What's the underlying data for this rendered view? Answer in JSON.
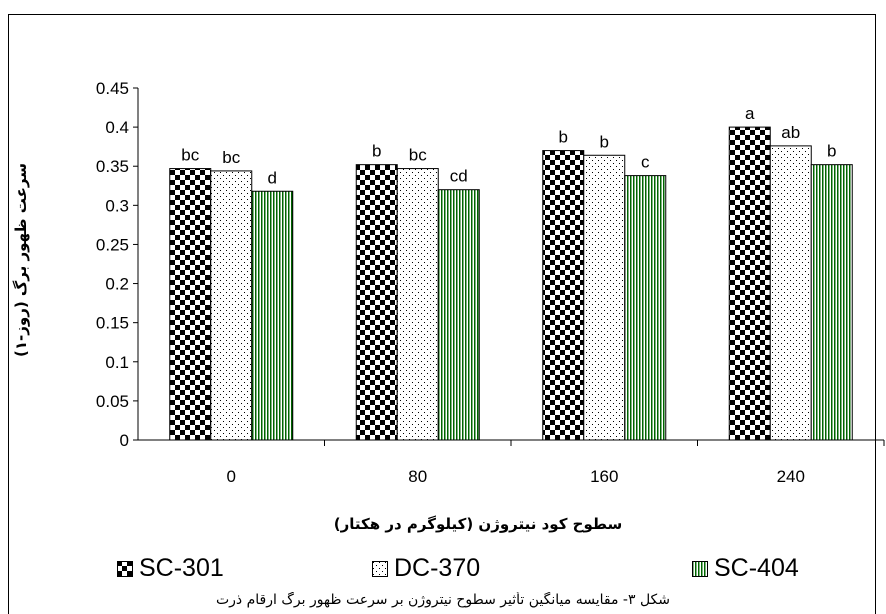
{
  "chart_data": {
    "type": "bar",
    "categories": [
      "0",
      "80",
      "160",
      "240"
    ],
    "series": [
      {
        "name": "SC-301",
        "values": [
          0.347,
          0.352,
          0.37,
          0.4
        ],
        "letters": [
          "bc",
          "b",
          "b",
          "a"
        ],
        "pattern": "checker"
      },
      {
        "name": "DC-370",
        "values": [
          0.344,
          0.347,
          0.364,
          0.376
        ],
        "letters": [
          "bc",
          "bc",
          "b",
          "ab"
        ],
        "pattern": "dots"
      },
      {
        "name": "SC-404",
        "values": [
          0.318,
          0.32,
          0.338,
          0.352
        ],
        "letters": [
          "d",
          "cd",
          "c",
          "b"
        ],
        "pattern": "vlines"
      }
    ],
    "ylim": [
      0,
      0.45
    ],
    "yticks": [
      "0",
      "0.05",
      "0.1",
      "0.15",
      "0.2",
      "0.25",
      "0.3",
      "0.35",
      "0.4",
      "0.45"
    ],
    "xlabel": "سطوح کود نیتروژن (کیلوگرم در هکتار)",
    "ylabel": "سرعت ظهور برگ (روز-۱)",
    "legend_position": "bottom",
    "grid": false,
    "colors": {
      "pattern": "#000000",
      "background": "#ffffff",
      "vlines": "#006600"
    }
  },
  "caption": "شکل ۳- مقایسه میانگین تأثیر سطوح نیتروژن بر سرعت ظهور برگ ارقام ذرت"
}
